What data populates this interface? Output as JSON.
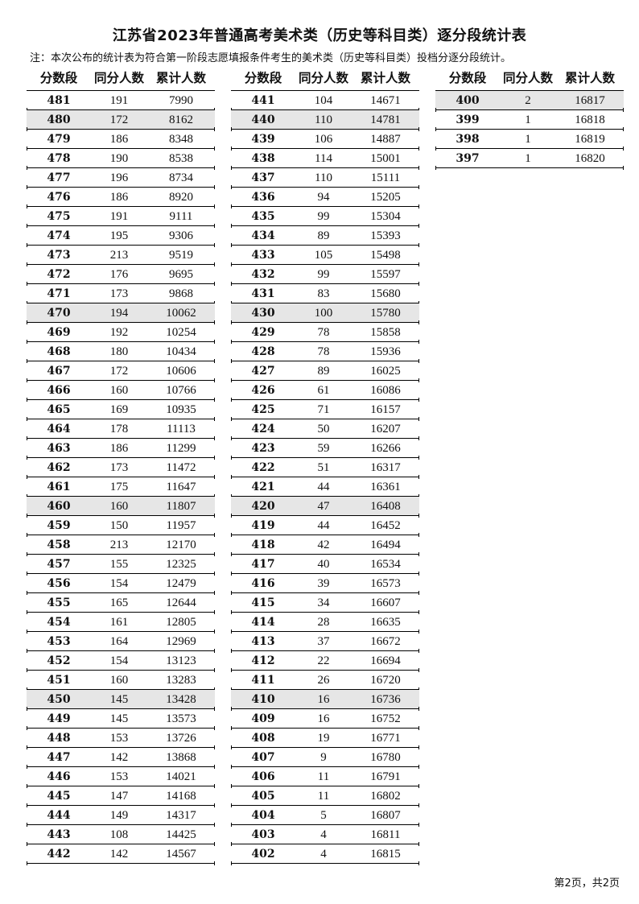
{
  "title": "江苏省2023年普通高考美术类（历史等科目类）逐分段统计表",
  "note": "注：本次公布的统计表为符合第一阶段志愿填报条件考生的美术类（历史等科目类）投档分逐分段统计。",
  "headers": [
    "分数段",
    "同分人数",
    "累计人数"
  ],
  "shade_color": "#e6e6e6",
  "tables": [
    {
      "rows": [
        [
          "481",
          "191",
          "7990"
        ],
        [
          "480",
          "172",
          "8162"
        ],
        [
          "479",
          "186",
          "8348"
        ],
        [
          "478",
          "190",
          "8538"
        ],
        [
          "477",
          "196",
          "8734"
        ],
        [
          "476",
          "186",
          "8920"
        ],
        [
          "475",
          "191",
          "9111"
        ],
        [
          "474",
          "195",
          "9306"
        ],
        [
          "473",
          "213",
          "9519"
        ],
        [
          "472",
          "176",
          "9695"
        ],
        [
          "471",
          "173",
          "9868"
        ],
        [
          "470",
          "194",
          "10062"
        ],
        [
          "469",
          "192",
          "10254"
        ],
        [
          "468",
          "180",
          "10434"
        ],
        [
          "467",
          "172",
          "10606"
        ],
        [
          "466",
          "160",
          "10766"
        ],
        [
          "465",
          "169",
          "10935"
        ],
        [
          "464",
          "178",
          "11113"
        ],
        [
          "463",
          "186",
          "11299"
        ],
        [
          "462",
          "173",
          "11472"
        ],
        [
          "461",
          "175",
          "11647"
        ],
        [
          "460",
          "160",
          "11807"
        ],
        [
          "459",
          "150",
          "11957"
        ],
        [
          "458",
          "213",
          "12170"
        ],
        [
          "457",
          "155",
          "12325"
        ],
        [
          "456",
          "154",
          "12479"
        ],
        [
          "455",
          "165",
          "12644"
        ],
        [
          "454",
          "161",
          "12805"
        ],
        [
          "453",
          "164",
          "12969"
        ],
        [
          "452",
          "154",
          "13123"
        ],
        [
          "451",
          "160",
          "13283"
        ],
        [
          "450",
          "145",
          "13428"
        ],
        [
          "449",
          "145",
          "13573"
        ],
        [
          "448",
          "153",
          "13726"
        ],
        [
          "447",
          "142",
          "13868"
        ],
        [
          "446",
          "153",
          "14021"
        ],
        [
          "445",
          "147",
          "14168"
        ],
        [
          "444",
          "149",
          "14317"
        ],
        [
          "443",
          "108",
          "14425"
        ],
        [
          "442",
          "142",
          "14567"
        ]
      ]
    },
    {
      "rows": [
        [
          "441",
          "104",
          "14671"
        ],
        [
          "440",
          "110",
          "14781"
        ],
        [
          "439",
          "106",
          "14887"
        ],
        [
          "438",
          "114",
          "15001"
        ],
        [
          "437",
          "110",
          "15111"
        ],
        [
          "436",
          "94",
          "15205"
        ],
        [
          "435",
          "99",
          "15304"
        ],
        [
          "434",
          "89",
          "15393"
        ],
        [
          "433",
          "105",
          "15498"
        ],
        [
          "432",
          "99",
          "15597"
        ],
        [
          "431",
          "83",
          "15680"
        ],
        [
          "430",
          "100",
          "15780"
        ],
        [
          "429",
          "78",
          "15858"
        ],
        [
          "428",
          "78",
          "15936"
        ],
        [
          "427",
          "89",
          "16025"
        ],
        [
          "426",
          "61",
          "16086"
        ],
        [
          "425",
          "71",
          "16157"
        ],
        [
          "424",
          "50",
          "16207"
        ],
        [
          "423",
          "59",
          "16266"
        ],
        [
          "422",
          "51",
          "16317"
        ],
        [
          "421",
          "44",
          "16361"
        ],
        [
          "420",
          "47",
          "16408"
        ],
        [
          "419",
          "44",
          "16452"
        ],
        [
          "418",
          "42",
          "16494"
        ],
        [
          "417",
          "40",
          "16534"
        ],
        [
          "416",
          "39",
          "16573"
        ],
        [
          "415",
          "34",
          "16607"
        ],
        [
          "414",
          "28",
          "16635"
        ],
        [
          "413",
          "37",
          "16672"
        ],
        [
          "412",
          "22",
          "16694"
        ],
        [
          "411",
          "26",
          "16720"
        ],
        [
          "410",
          "16",
          "16736"
        ],
        [
          "409",
          "16",
          "16752"
        ],
        [
          "408",
          "19",
          "16771"
        ],
        [
          "407",
          "9",
          "16780"
        ],
        [
          "406",
          "11",
          "16791"
        ],
        [
          "405",
          "11",
          "16802"
        ],
        [
          "404",
          "5",
          "16807"
        ],
        [
          "403",
          "4",
          "16811"
        ],
        [
          "402",
          "4",
          "16815"
        ]
      ]
    },
    {
      "rows": [
        [
          "400",
          "2",
          "16817"
        ],
        [
          "399",
          "1",
          "16818"
        ],
        [
          "398",
          "1",
          "16819"
        ],
        [
          "397",
          "1",
          "16820"
        ]
      ]
    }
  ],
  "footer": "第2页，共2页"
}
